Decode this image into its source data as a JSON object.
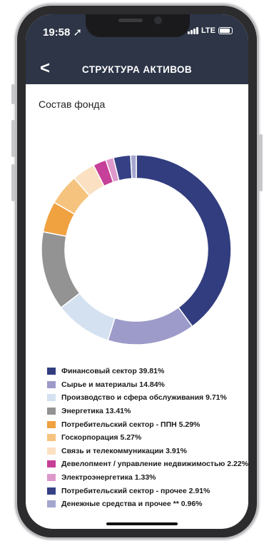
{
  "status_bar": {
    "time": "19:58 ➚",
    "network": "LTE"
  },
  "nav": {
    "back_icon": "chevron-left-icon",
    "back_glyph": "<",
    "title": "СТРУКТУРА АКТИВОВ"
  },
  "section": {
    "title": "Состав фонда"
  },
  "chart_data": {
    "type": "pie",
    "title": "",
    "series": [
      {
        "name": "Финансовый сектор",
        "value": 39.81,
        "color": "#323d7f"
      },
      {
        "name": "Сырье и материалы",
        "value": 14.84,
        "color": "#9c9bc9"
      },
      {
        "name": "Производство и сфера обслуживания",
        "value": 9.71,
        "color": "#d4e1f0"
      },
      {
        "name": "Энергетика",
        "value": 13.41,
        "color": "#939393"
      },
      {
        "name": "Потребительский сектор - ППН",
        "value": 5.29,
        "color": "#f0a140"
      },
      {
        "name": "Госкорпорация",
        "value": 5.27,
        "color": "#f6c37e"
      },
      {
        "name": "Связь и телекоммуникации",
        "value": 3.91,
        "color": "#fbe1c2"
      },
      {
        "name": "Девелопмент / управление недвижимостью",
        "value": 2.22,
        "color": "#c63f98"
      },
      {
        "name": "Электроэнергетика",
        "value": 1.33,
        "color": "#dd99cc"
      },
      {
        "name": "Потребительский сектор - прочее",
        "value": 2.91,
        "color": "#354085"
      },
      {
        "name": "Денежные средства и прочее **",
        "value": 0.96,
        "color": "#a4a6cf"
      }
    ]
  },
  "legend": [
    {
      "label": "Финансовый сектор 39.81%"
    },
    {
      "label": "Сырье и материалы 14.84%"
    },
    {
      "label": "Производство и сфера обслуживания 9.71%"
    },
    {
      "label": "Энергетика 13.41%"
    },
    {
      "label": "Потребительский сектор - ППН 5.29%"
    },
    {
      "label": "Госкорпорация 5.27%"
    },
    {
      "label": "Связь и телекоммуникации 3.91%"
    },
    {
      "label": "Девелопмент / управление недвижимостью 2.22%"
    },
    {
      "label": "Электроэнергетика 1.33%"
    },
    {
      "label": "Потребительский сектор - прочее 2.91%"
    },
    {
      "label": "Денежные средства и прочее ** 0.96%"
    }
  ]
}
